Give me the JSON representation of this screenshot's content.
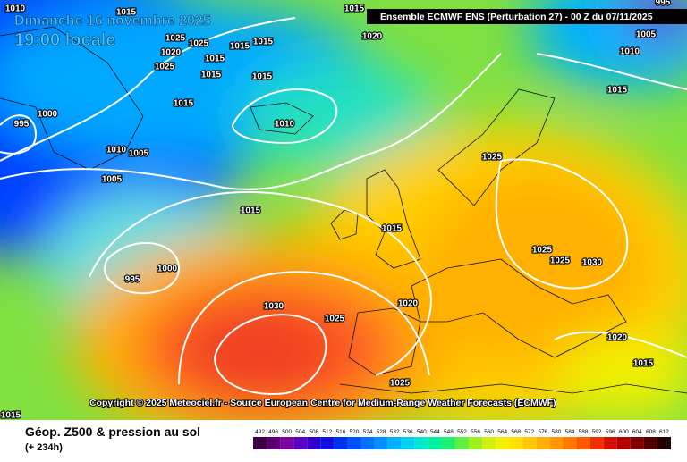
{
  "header": {
    "date": "Dimanche 16 novembre 2025",
    "time": "19:00 locale",
    "run": "Ensemble ECMWF ENS  (Perturbation 27)  -  00 Z du 07/11/2025"
  },
  "copyright": "Copyright © 2025 Meteociel.fr - Source European Centre for Medium-Range Weather Forecasts (ECMWF)",
  "isobar_labels": [
    "1010",
    "1015",
    "1025",
    "1025",
    "1020",
    "1025",
    "1015",
    "1015",
    "1015",
    "1015",
    "1015",
    "1000",
    "995",
    "1010",
    "1005",
    "1005",
    "1015",
    "1010",
    "1015",
    "1020",
    "1015",
    "1010",
    "1005",
    "995",
    "1025",
    "1015",
    "1015",
    "1025",
    "1025",
    "1030",
    "1000",
    "995",
    "1030",
    "1025",
    "1020",
    "1020",
    "1015",
    "1025",
    "1015"
  ],
  "legend": {
    "title": "Géop. Z500 & pression au sol",
    "subtitle": "(+ 234h)",
    "levels": [
      492,
      496,
      500,
      504,
      508,
      512,
      516,
      520,
      524,
      528,
      532,
      536,
      540,
      544,
      548,
      552,
      556,
      560,
      564,
      568,
      572,
      576,
      580,
      584,
      588,
      592,
      596,
      600,
      604,
      608,
      612
    ],
    "colors": [
      "#3a0040",
      "#5a0070",
      "#7a00a0",
      "#5a00c0",
      "#3000d0",
      "#1010e0",
      "#0030f0",
      "#0050ff",
      "#0070ff",
      "#0090ff",
      "#00b0ff",
      "#00d0f0",
      "#00e8d0",
      "#00f0a0",
      "#20f070",
      "#60f040",
      "#a0f020",
      "#d0f010",
      "#f0f000",
      "#ffe000",
      "#ffc800",
      "#ffb000",
      "#ff9800",
      "#ff7800",
      "#ff5800",
      "#f03000",
      "#d01000",
      "#b00000",
      "#800000",
      "#500000",
      "#200000"
    ]
  }
}
